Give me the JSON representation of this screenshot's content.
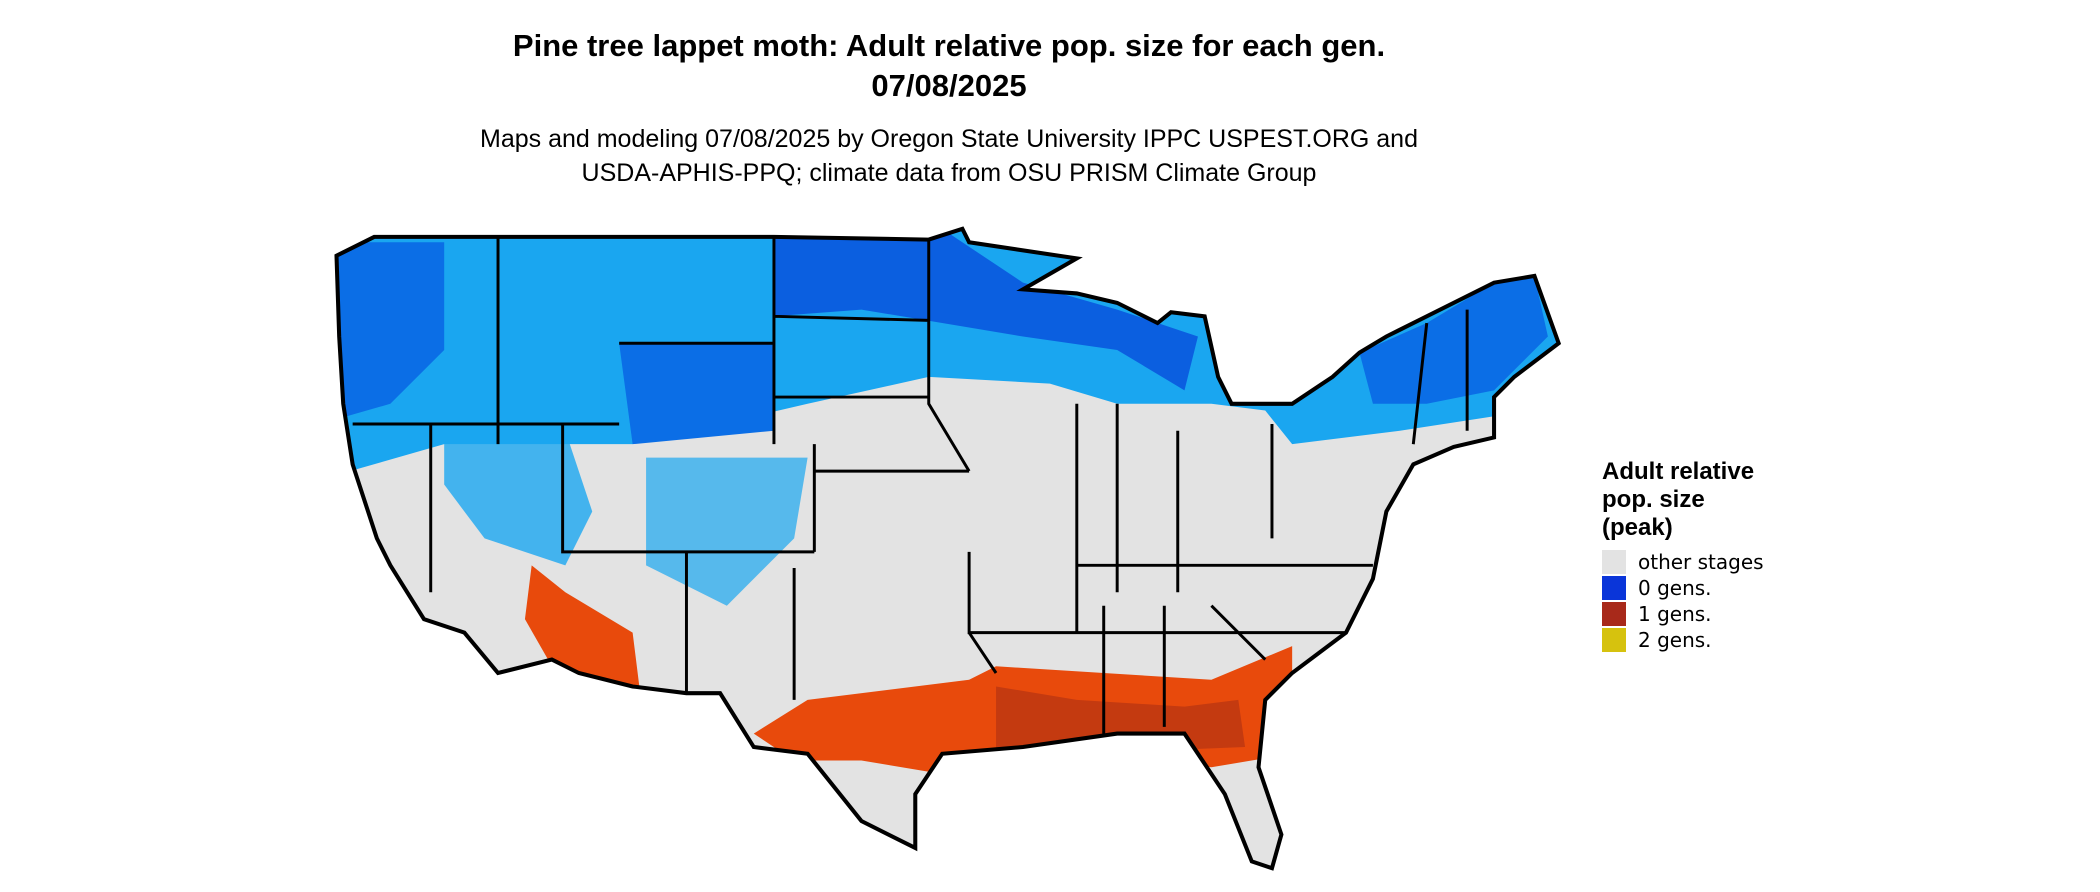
{
  "header": {
    "title_lines": [
      "Pine tree lappet moth: Adult relative pop. size for each gen.",
      "07/08/2025"
    ],
    "subtitle_lines": [
      "Maps and modeling 07/08/2025 by Oregon State University IPPC USPEST.ORG and",
      "USDA-APHIS-PPQ; climate data from OSU PRISM Climate Group"
    ]
  },
  "legend": {
    "title_lines": [
      "Adult relative",
      "pop. size",
      "(peak)"
    ],
    "items": [
      {
        "label": "other stages",
        "color": "#e3e3e3"
      },
      {
        "label": "0 gens.",
        "color": "#0a35d9"
      },
      {
        "label": "1 gens.",
        "color": "#a8291a"
      },
      {
        "label": "2 gens.",
        "color": "#d6c20e"
      }
    ]
  }
}
